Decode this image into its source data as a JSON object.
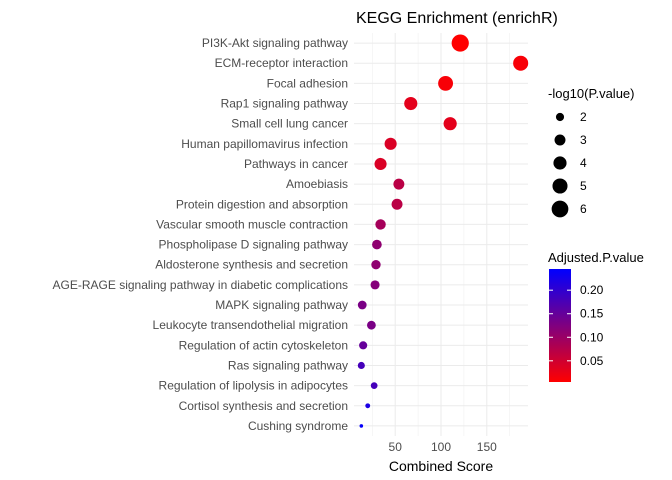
{
  "chart_data": {
    "type": "scatter",
    "title": "KEGG Enrichment (enrichR)",
    "xlabel": "Combined Score",
    "ylabel": "",
    "xlim": [
      5,
      195
    ],
    "xticks": [
      50,
      100,
      150
    ],
    "grid": true,
    "legend_position": "right",
    "size_legend": {
      "title": "-log10(P.value)",
      "values": [
        2,
        3,
        4,
        5,
        6
      ]
    },
    "color_legend": {
      "title": "Adjusted.P.value",
      "range": [
        0.005,
        0.245
      ],
      "ticks": [
        0.05,
        0.1,
        0.15,
        0.2
      ],
      "tick_labels": [
        "0.05",
        "0.10",
        "0.15",
        "0.20"
      ],
      "low_color": "#ff0000",
      "high_color": "#0000ff"
    },
    "points": [
      {
        "term": "PI3K-Akt signaling pathway",
        "combined_score": 121,
        "neglog10p": 6.3,
        "adj_p": 0.005
      },
      {
        "term": "ECM-receptor interaction",
        "combined_score": 187,
        "neglog10p": 5.0,
        "adj_p": 0.012
      },
      {
        "term": "Focal adhesion",
        "combined_score": 105,
        "neglog10p": 4.9,
        "adj_p": 0.012
      },
      {
        "term": "Rap1 signaling pathway",
        "combined_score": 67,
        "neglog10p": 4.0,
        "adj_p": 0.03
      },
      {
        "term": "Small cell lung cancer",
        "combined_score": 110,
        "neglog10p": 4.0,
        "adj_p": 0.03
      },
      {
        "term": "Human papillomavirus infection",
        "combined_score": 45,
        "neglog10p": 3.5,
        "adj_p": 0.04
      },
      {
        "term": "Pathways in cancer",
        "combined_score": 34,
        "neglog10p": 3.5,
        "adj_p": 0.04
      },
      {
        "term": "Amoebiasis",
        "combined_score": 54,
        "neglog10p": 3.0,
        "adj_p": 0.07
      },
      {
        "term": "Protein digestion and absorption",
        "combined_score": 52,
        "neglog10p": 3.0,
        "adj_p": 0.07
      },
      {
        "term": "Vascular smooth muscle contraction",
        "combined_score": 34,
        "neglog10p": 2.8,
        "adj_p": 0.09
      },
      {
        "term": "Phospholipase D signaling pathway",
        "combined_score": 30,
        "neglog10p": 2.5,
        "adj_p": 0.11
      },
      {
        "term": "Aldosterone synthesis and secretion",
        "combined_score": 29,
        "neglog10p": 2.4,
        "adj_p": 0.11
      },
      {
        "term": "AGE-RAGE signaling pathway in diabetic complications",
        "combined_score": 28,
        "neglog10p": 2.3,
        "adj_p": 0.12
      },
      {
        "term": "MAPK signaling pathway",
        "combined_score": 14,
        "neglog10p": 2.2,
        "adj_p": 0.13
      },
      {
        "term": "Leukocyte transendothelial migration",
        "combined_score": 24,
        "neglog10p": 2.2,
        "adj_p": 0.13
      },
      {
        "term": "Regulation of actin cytoskeleton",
        "combined_score": 15,
        "neglog10p": 2.0,
        "adj_p": 0.15
      },
      {
        "term": "Ras signaling pathway",
        "combined_score": 13,
        "neglog10p": 1.7,
        "adj_p": 0.18
      },
      {
        "term": "Regulation of lipolysis in adipocytes",
        "combined_score": 27,
        "neglog10p": 1.6,
        "adj_p": 0.18
      },
      {
        "term": "Cortisol synthesis and secretion",
        "combined_score": 20,
        "neglog10p": 1.2,
        "adj_p": 0.22
      },
      {
        "term": "Cushing syndrome",
        "combined_score": 13,
        "neglog10p": 1.0,
        "adj_p": 0.24
      }
    ]
  }
}
